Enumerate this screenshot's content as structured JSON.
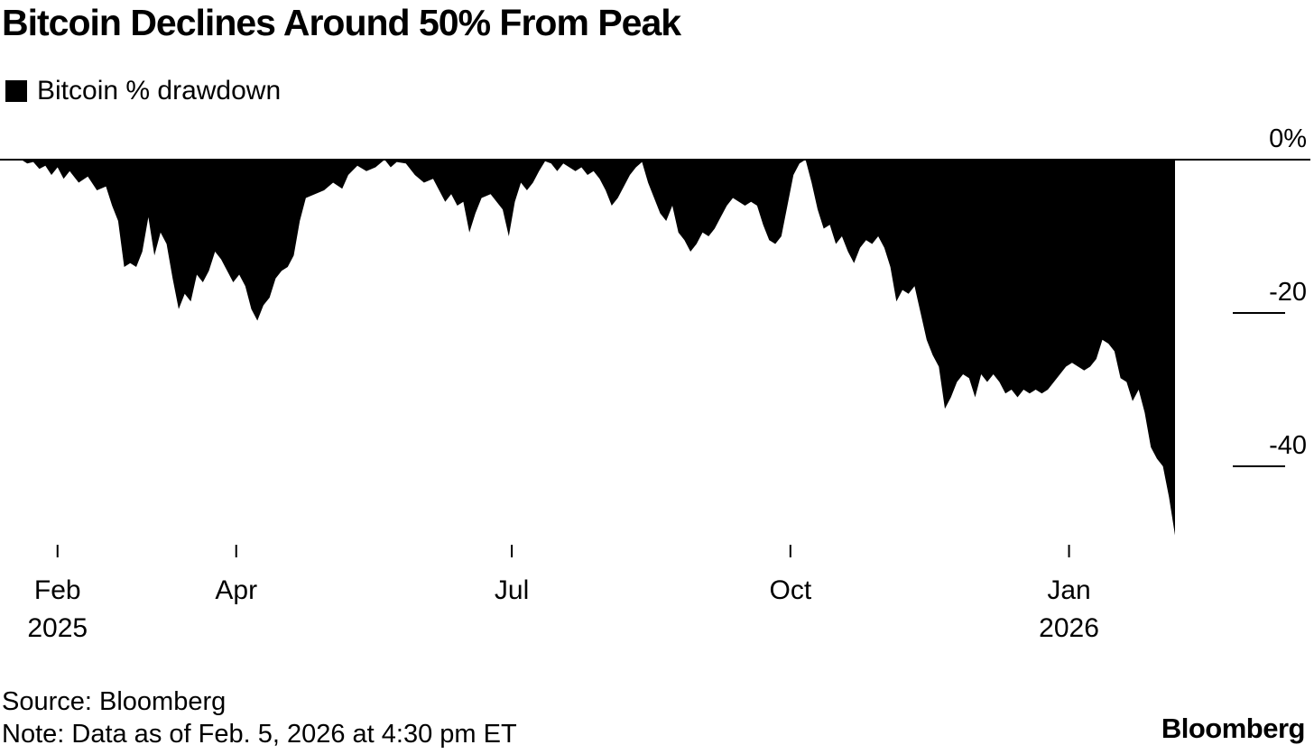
{
  "chart_data": {
    "type": "area",
    "title": "Bitcoin Declines Around 50% From Peak",
    "series": [
      {
        "name": "Bitcoin % drawdown",
        "color": "#000000"
      }
    ],
    "x_ticks": [
      {
        "date": "2025-02-01",
        "label": "Feb",
        "sublabel": "2025"
      },
      {
        "date": "2025-04-01",
        "label": "Apr",
        "sublabel": ""
      },
      {
        "date": "2025-07-01",
        "label": "Jul",
        "sublabel": ""
      },
      {
        "date": "2025-10-01",
        "label": "Oct",
        "sublabel": ""
      },
      {
        "date": "2026-01-01",
        "label": "Jan",
        "sublabel": "2026"
      }
    ],
    "y_ticks": [
      {
        "value": 0,
        "label": "0%"
      },
      {
        "value": -20,
        "label": "-20"
      },
      {
        "value": -40,
        "label": "-40"
      }
    ],
    "xlim": [
      "2025-01-13",
      "2026-02-05"
    ],
    "ylim": [
      -50,
      0
    ],
    "points": [
      [
        "2025-01-20",
        0
      ],
      [
        "2025-01-22",
        -0.5
      ],
      [
        "2025-01-24",
        -0.3
      ],
      [
        "2025-01-26",
        -1.2
      ],
      [
        "2025-01-28",
        -0.8
      ],
      [
        "2025-01-30",
        -2.0
      ],
      [
        "2025-02-01",
        -1.0
      ],
      [
        "2025-02-03",
        -2.5
      ],
      [
        "2025-02-05",
        -1.5
      ],
      [
        "2025-02-08",
        -3.0
      ],
      [
        "2025-02-11",
        -2.2
      ],
      [
        "2025-02-14",
        -4.0
      ],
      [
        "2025-02-17",
        -3.5
      ],
      [
        "2025-02-19",
        -6.0
      ],
      [
        "2025-02-21",
        -8.0
      ],
      [
        "2025-02-23",
        -14.0
      ],
      [
        "2025-02-25",
        -13.5
      ],
      [
        "2025-02-27",
        -14.0
      ],
      [
        "2025-03-01",
        -12.0
      ],
      [
        "2025-03-03",
        -7.5
      ],
      [
        "2025-03-05",
        -12.5
      ],
      [
        "2025-03-07",
        -9.5
      ],
      [
        "2025-03-09",
        -11.0
      ],
      [
        "2025-03-11",
        -15.5
      ],
      [
        "2025-03-13",
        -19.5
      ],
      [
        "2025-03-15",
        -17.5
      ],
      [
        "2025-03-17",
        -18.5
      ],
      [
        "2025-03-19",
        -15.0
      ],
      [
        "2025-03-21",
        -16.0
      ],
      [
        "2025-03-23",
        -14.5
      ],
      [
        "2025-03-25",
        -12.0
      ],
      [
        "2025-03-27",
        -13.0
      ],
      [
        "2025-03-29",
        -14.5
      ],
      [
        "2025-03-31",
        -16.0
      ],
      [
        "2025-04-02",
        -15.0
      ],
      [
        "2025-04-04",
        -16.5
      ],
      [
        "2025-04-06",
        -19.5
      ],
      [
        "2025-04-08",
        -21.0
      ],
      [
        "2025-04-10",
        -19.0
      ],
      [
        "2025-04-12",
        -18.0
      ],
      [
        "2025-04-14",
        -15.5
      ],
      [
        "2025-04-16",
        -14.5
      ],
      [
        "2025-04-18",
        -14.0
      ],
      [
        "2025-04-20",
        -12.5
      ],
      [
        "2025-04-22",
        -8.0
      ],
      [
        "2025-04-24",
        -5.0
      ],
      [
        "2025-04-27",
        -4.5
      ],
      [
        "2025-04-30",
        -4.0
      ],
      [
        "2025-05-03",
        -3.0
      ],
      [
        "2025-05-06",
        -3.8
      ],
      [
        "2025-05-08",
        -2.0
      ],
      [
        "2025-05-11",
        -0.8
      ],
      [
        "2025-05-14",
        -1.5
      ],
      [
        "2025-05-17",
        -1.0
      ],
      [
        "2025-05-20",
        0.0
      ],
      [
        "2025-05-22",
        -1.0
      ],
      [
        "2025-05-24",
        -0.3
      ],
      [
        "2025-05-27",
        -0.5
      ],
      [
        "2025-05-30",
        -2.0
      ],
      [
        "2025-06-02",
        -3.0
      ],
      [
        "2025-06-05",
        -2.5
      ],
      [
        "2025-06-07",
        -4.0
      ],
      [
        "2025-06-09",
        -5.5
      ],
      [
        "2025-06-11",
        -4.5
      ],
      [
        "2025-06-13",
        -6.0
      ],
      [
        "2025-06-15",
        -5.5
      ],
      [
        "2025-06-17",
        -9.5
      ],
      [
        "2025-06-19",
        -7.0
      ],
      [
        "2025-06-21",
        -5.0
      ],
      [
        "2025-06-24",
        -4.5
      ],
      [
        "2025-06-26",
        -5.5
      ],
      [
        "2025-06-28",
        -6.5
      ],
      [
        "2025-06-30",
        -10.0
      ],
      [
        "2025-07-02",
        -5.5
      ],
      [
        "2025-07-04",
        -3.0
      ],
      [
        "2025-07-06",
        -4.0
      ],
      [
        "2025-07-08",
        -3.0
      ],
      [
        "2025-07-10",
        -1.5
      ],
      [
        "2025-07-12",
        -0.2
      ],
      [
        "2025-07-14",
        -0.5
      ],
      [
        "2025-07-16",
        -1.5
      ],
      [
        "2025-07-18",
        -0.5
      ],
      [
        "2025-07-20",
        -1.0
      ],
      [
        "2025-07-22",
        -1.5
      ],
      [
        "2025-07-24",
        -1.0
      ],
      [
        "2025-07-26",
        -2.0
      ],
      [
        "2025-07-28",
        -1.5
      ],
      [
        "2025-07-30",
        -2.5
      ],
      [
        "2025-08-01",
        -4.0
      ],
      [
        "2025-08-03",
        -6.0
      ],
      [
        "2025-08-05",
        -5.0
      ],
      [
        "2025-08-07",
        -3.5
      ],
      [
        "2025-08-09",
        -2.0
      ],
      [
        "2025-08-11",
        -1.0
      ],
      [
        "2025-08-13",
        -0.3
      ],
      [
        "2025-08-15",
        -3.0
      ],
      [
        "2025-08-17",
        -5.0
      ],
      [
        "2025-08-19",
        -7.0
      ],
      [
        "2025-08-21",
        -8.0
      ],
      [
        "2025-08-23",
        -6.0
      ],
      [
        "2025-08-25",
        -9.5
      ],
      [
        "2025-08-27",
        -10.5
      ],
      [
        "2025-08-29",
        -12.0
      ],
      [
        "2025-08-31",
        -11.0
      ],
      [
        "2025-09-02",
        -9.5
      ],
      [
        "2025-09-04",
        -10.0
      ],
      [
        "2025-09-06",
        -9.0
      ],
      [
        "2025-09-08",
        -7.5
      ],
      [
        "2025-09-10",
        -6.0
      ],
      [
        "2025-09-12",
        -5.0
      ],
      [
        "2025-09-14",
        -5.5
      ],
      [
        "2025-09-16",
        -6.0
      ],
      [
        "2025-09-18",
        -5.5
      ],
      [
        "2025-09-20",
        -6.0
      ],
      [
        "2025-09-22",
        -8.5
      ],
      [
        "2025-09-24",
        -10.5
      ],
      [
        "2025-09-26",
        -11.0
      ],
      [
        "2025-09-28",
        -10.0
      ],
      [
        "2025-09-30",
        -6.0
      ],
      [
        "2025-10-02",
        -2.0
      ],
      [
        "2025-10-04",
        -0.5
      ],
      [
        "2025-10-06",
        0.0
      ],
      [
        "2025-10-08",
        -3.0
      ],
      [
        "2025-10-10",
        -6.5
      ],
      [
        "2025-10-12",
        -9.0
      ],
      [
        "2025-10-14",
        -8.5
      ],
      [
        "2025-10-16",
        -11.0
      ],
      [
        "2025-10-18",
        -10.0
      ],
      [
        "2025-10-20",
        -12.0
      ],
      [
        "2025-10-22",
        -13.5
      ],
      [
        "2025-10-24",
        -11.5
      ],
      [
        "2025-10-26",
        -10.5
      ],
      [
        "2025-10-28",
        -11.0
      ],
      [
        "2025-10-30",
        -10.0
      ],
      [
        "2025-11-01",
        -11.5
      ],
      [
        "2025-11-03",
        -14.0
      ],
      [
        "2025-11-05",
        -18.5
      ],
      [
        "2025-11-07",
        -17.0
      ],
      [
        "2025-11-09",
        -17.5
      ],
      [
        "2025-11-11",
        -16.5
      ],
      [
        "2025-11-13",
        -20.0
      ],
      [
        "2025-11-15",
        -23.5
      ],
      [
        "2025-11-17",
        -25.5
      ],
      [
        "2025-11-19",
        -27.0
      ],
      [
        "2025-11-21",
        -32.5
      ],
      [
        "2025-11-23",
        -31.0
      ],
      [
        "2025-11-25",
        -29.0
      ],
      [
        "2025-11-27",
        -28.0
      ],
      [
        "2025-11-29",
        -28.5
      ],
      [
        "2025-12-01",
        -31.0
      ],
      [
        "2025-12-03",
        -28.0
      ],
      [
        "2025-12-05",
        -29.0
      ],
      [
        "2025-12-07",
        -28.0
      ],
      [
        "2025-12-09",
        -29.0
      ],
      [
        "2025-12-11",
        -30.5
      ],
      [
        "2025-12-13",
        -30.0
      ],
      [
        "2025-12-15",
        -31.0
      ],
      [
        "2025-12-17",
        -30.0
      ],
      [
        "2025-12-19",
        -30.5
      ],
      [
        "2025-12-21",
        -30.0
      ],
      [
        "2025-12-23",
        -30.5
      ],
      [
        "2025-12-25",
        -30.0
      ],
      [
        "2025-12-27",
        -29.0
      ],
      [
        "2025-12-29",
        -28.0
      ],
      [
        "2025-12-31",
        -27.0
      ],
      [
        "2026-01-02",
        -26.5
      ],
      [
        "2026-01-04",
        -27.0
      ],
      [
        "2026-01-06",
        -27.5
      ],
      [
        "2026-01-08",
        -27.0
      ],
      [
        "2026-01-10",
        -26.0
      ],
      [
        "2026-01-12",
        -23.5
      ],
      [
        "2026-01-14",
        -24.0
      ],
      [
        "2026-01-16",
        -25.0
      ],
      [
        "2026-01-18",
        -28.5
      ],
      [
        "2026-01-20",
        -29.0
      ],
      [
        "2026-01-22",
        -31.5
      ],
      [
        "2026-01-24",
        -30.0
      ],
      [
        "2026-01-26",
        -33.0
      ],
      [
        "2026-01-28",
        -37.5
      ],
      [
        "2026-01-30",
        -39.0
      ],
      [
        "2026-02-01",
        -40.0
      ],
      [
        "2026-02-03",
        -44.0
      ],
      [
        "2026-02-05",
        -49.0
      ]
    ]
  },
  "legend_label": "Bitcoin % drawdown",
  "source": "Source: Bloomberg",
  "note": "Note: Data as of Feb. 5, 2026 at 4:30 pm ET",
  "brand": "Bloomberg"
}
